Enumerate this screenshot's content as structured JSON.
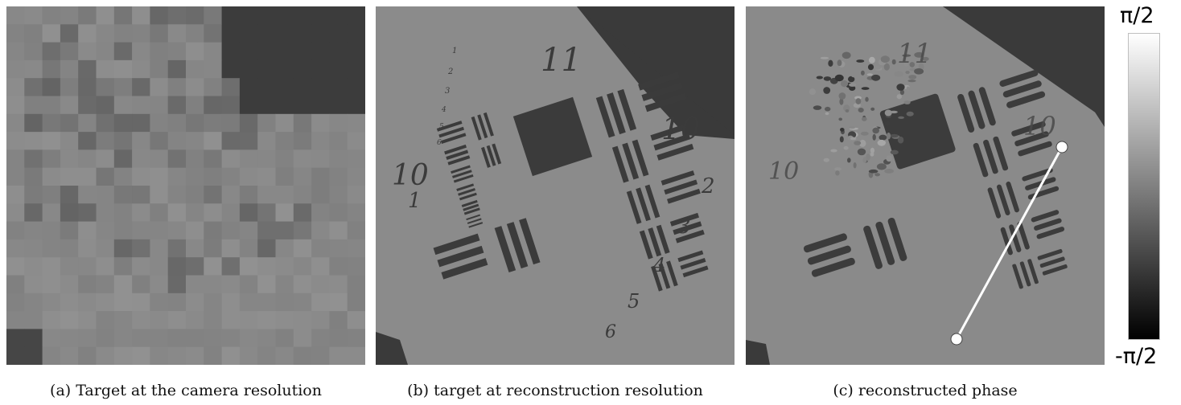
{
  "panels": [
    {
      "caption": "(a) Target at the camera resolution"
    },
    {
      "caption": "(b) target at reconstruction resolution"
    },
    {
      "caption": "(c) reconstructed phase"
    }
  ],
  "target_labels": {
    "group_11": "11",
    "group_10_top": "10",
    "group_10_left": "10",
    "element_1": "1",
    "elements_right": [
      "2",
      "3",
      "4",
      "5",
      "6"
    ],
    "elements_small": [
      "1",
      "2",
      "3",
      "4",
      "5",
      "6"
    ]
  },
  "colorbar": {
    "max_label": "π/2",
    "min_label": "-π/2"
  },
  "colors": {
    "background_gray": "#8a8a8a",
    "dark_bars": "#3b3b3b",
    "line": "#ffffff"
  }
}
